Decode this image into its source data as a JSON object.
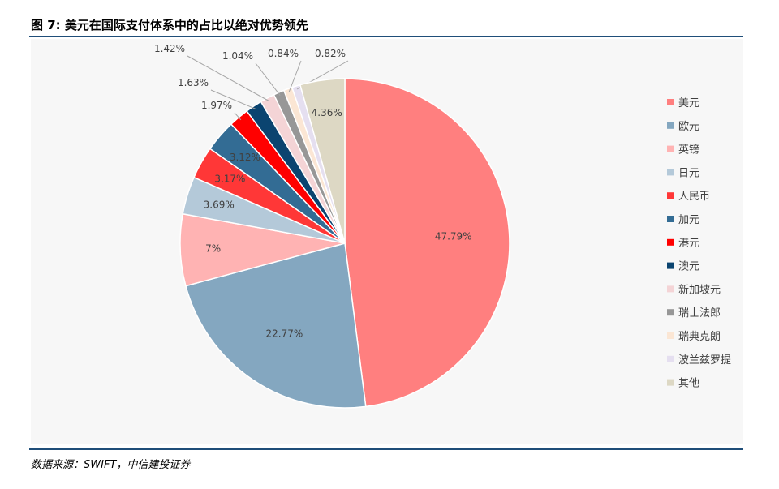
{
  "title": "图 7: 美元在国际支付体系中的占比以绝对优势领先",
  "source": "数据来源：SWIFT，中信建投证券",
  "chart_data": {
    "type": "pie",
    "slices": [
      {
        "name": "美元",
        "value": 47.79,
        "label": "47.79%",
        "color": "#ff7f7f"
      },
      {
        "name": "欧元",
        "value": 22.77,
        "label": "22.77%",
        "color": "#84a7c0"
      },
      {
        "name": "英镑",
        "value": 7.0,
        "label": "7%",
        "color": "#ffb3b3"
      },
      {
        "name": "日元",
        "value": 3.69,
        "label": "3.69%",
        "color": "#b4c9d9"
      },
      {
        "name": "人民币",
        "value": 3.17,
        "label": "3.17%",
        "color": "#ff3737"
      },
      {
        "name": "加元",
        "value": 3.12,
        "label": "3.12%",
        "color": "#336c94"
      },
      {
        "name": "港元",
        "value": 1.97,
        "label": "1.97%",
        "color": "#ff0000"
      },
      {
        "name": "澳元",
        "value": 1.63,
        "label": "1.63%",
        "color": "#0b4470"
      },
      {
        "name": "新加坡元",
        "value": 1.42,
        "label": "1.42%",
        "color": "#f4d4d6"
      },
      {
        "name": "瑞士法郎",
        "value": 1.04,
        "label": "1.04%",
        "color": "#979797"
      },
      {
        "name": "瑞典克朗",
        "value": 0.84,
        "label": "0.84%",
        "color": "#fbe6d4"
      },
      {
        "name": "波兰兹罗提",
        "value": 0.82,
        "label": "0.82%",
        "color": "#e5dff0"
      },
      {
        "name": "其他",
        "value": 4.36,
        "label": "4.36%",
        "color": "#ddd8c4"
      }
    ],
    "legend_position": "right"
  }
}
